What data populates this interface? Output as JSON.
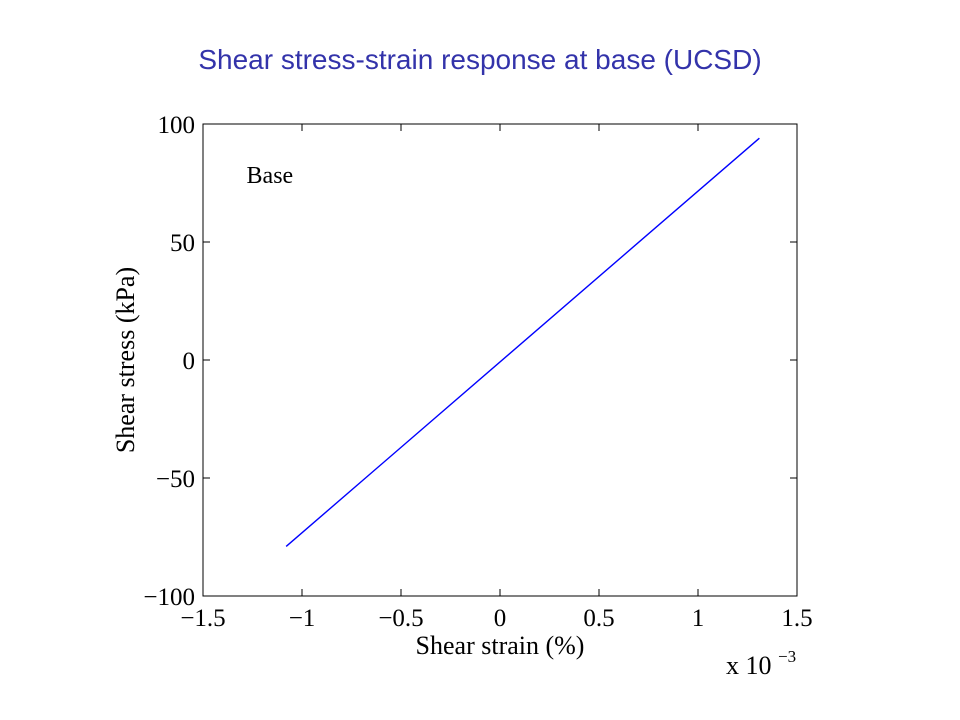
{
  "slide": {
    "title": "Shear stress-strain response at base (UCSD)"
  },
  "chart_data": {
    "type": "line",
    "title": "Shear stress-strain response at base (UCSD)",
    "xlabel": "Shear strain (%)",
    "ylabel": "Shear stress (kPa)",
    "x_multiplier_label": "x 10",
    "x_multiplier_exponent": "−3",
    "xlim": [
      -1.5,
      1.5
    ],
    "ylim": [
      -100,
      100
    ],
    "xticks": [
      -1.5,
      -1,
      -0.5,
      0,
      0.5,
      1,
      1.5
    ],
    "xtick_labels": [
      "−1.5",
      "−1",
      "−0.5",
      "0",
      "0.5",
      "1",
      "1.5"
    ],
    "yticks": [
      -100,
      -50,
      0,
      50,
      100
    ],
    "ytick_labels": [
      "−100",
      "−50",
      "0",
      "50",
      "100"
    ],
    "annotation": "Base",
    "annotation_pos": [
      -1.28,
      75
    ],
    "grid": false,
    "series": [
      {
        "color": "#0000ff",
        "x": [
          -1.08,
          1.31
        ],
        "y": [
          -79,
          94
        ]
      }
    ]
  }
}
